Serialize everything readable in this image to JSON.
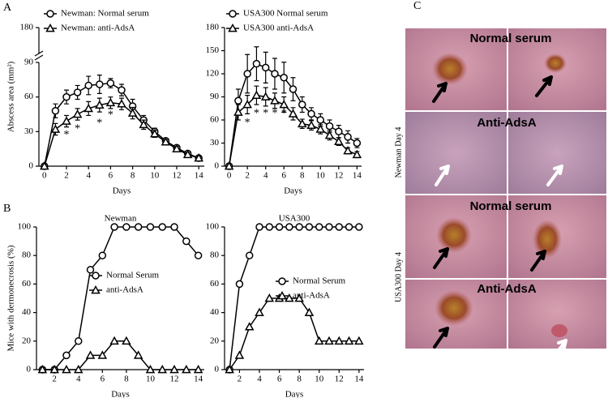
{
  "panel_labels": [
    "A",
    "B",
    "C"
  ],
  "chart_data": [
    {
      "type": "line",
      "x_label": "Days",
      "y_label": "Abscess area (mm²)",
      "x": [
        0,
        1,
        2,
        3,
        4,
        5,
        6,
        7,
        8,
        9,
        10,
        11,
        12,
        13,
        14
      ],
      "xlim": [
        -0.5,
        14.5
      ],
      "xticks": [
        0,
        2,
        4,
        6,
        8,
        10,
        12,
        14
      ],
      "ylim": [
        0,
        180
      ],
      "yticks": [
        0,
        30,
        60,
        90,
        180
      ],
      "y_break": 90,
      "series": [
        {
          "name": "Newman: Normal serum",
          "marker": "circle",
          "color": "#000000",
          "values": [
            0,
            48,
            60,
            64,
            70,
            71,
            72,
            66,
            52,
            40,
            30,
            22,
            16,
            11,
            7
          ],
          "errors": [
            0,
            6,
            6,
            6,
            8,
            8,
            4,
            5,
            6,
            4,
            3,
            2,
            2,
            2,
            2
          ]
        },
        {
          "name": "Newman: anti-AdsA",
          "marker": "triangle",
          "color": "#000000",
          "values": [
            0,
            32,
            39,
            45,
            50,
            53,
            55,
            54,
            46,
            36,
            28,
            21,
            15,
            10,
            7
          ],
          "errors": [
            0,
            5,
            5,
            5,
            6,
            6,
            5,
            5,
            5,
            4,
            3,
            2,
            2,
            2,
            2
          ]
        }
      ],
      "annotations": [
        {
          "text": "*",
          "x": 2,
          "y": 27
        },
        {
          "text": "*",
          "x": 3,
          "y": 32
        },
        {
          "text": "*",
          "x": 5,
          "y": 37
        },
        {
          "text": "*",
          "x": 6,
          "y": 44
        }
      ]
    },
    {
      "type": "line",
      "x_label": "Days",
      "x": [
        0,
        1,
        2,
        3,
        4,
        5,
        6,
        7,
        8,
        9,
        10,
        11,
        12,
        13,
        14
      ],
      "xlim": [
        -0.5,
        14.5
      ],
      "xticks": [
        0,
        2,
        4,
        6,
        8,
        10,
        12,
        14
      ],
      "ylim": [
        0,
        180
      ],
      "yticks": [
        0,
        30,
        60,
        90,
        120,
        150,
        180
      ],
      "series": [
        {
          "name": "USA300 Normal serum",
          "marker": "circle",
          "color": "#000000",
          "values": [
            0,
            85,
            120,
            133,
            128,
            120,
            115,
            100,
            80,
            68,
            60,
            52,
            45,
            38,
            30
          ],
          "errors": [
            0,
            15,
            25,
            22,
            20,
            20,
            20,
            15,
            10,
            8,
            8,
            8,
            8,
            8,
            6
          ]
        },
        {
          "name": "USA300 anti-AdsA",
          "marker": "triangle",
          "color": "#000000",
          "values": [
            0,
            70,
            80,
            92,
            90,
            85,
            80,
            68,
            55,
            53,
            48,
            40,
            32,
            20,
            15
          ],
          "errors": [
            0,
            10,
            12,
            12,
            12,
            10,
            10,
            8,
            6,
            6,
            6,
            6,
            5,
            4,
            4
          ]
        }
      ],
      "annotations": [
        {
          "text": "*",
          "x": 2,
          "y": 56
        },
        {
          "text": "*",
          "x": 3,
          "y": 68
        },
        {
          "text": "*",
          "x": 4,
          "y": 68
        },
        {
          "text": "*",
          "x": 5,
          "y": 68
        },
        {
          "text": "*",
          "x": 6,
          "y": 68
        }
      ]
    },
    {
      "type": "line",
      "title": "Newman",
      "x_label": "Days",
      "y_label": "Mice with dermonecrosis (%)",
      "x": [
        1,
        2,
        3,
        4,
        5,
        6,
        7,
        8,
        9,
        10,
        11,
        12,
        13,
        14
      ],
      "xlim": [
        0.5,
        14.5
      ],
      "xticks": [
        2,
        4,
        6,
        8,
        10,
        12,
        14
      ],
      "ylim": [
        0,
        100
      ],
      "yticks": [
        0,
        20,
        40,
        60,
        80,
        100
      ],
      "series": [
        {
          "name": "Normal Serum",
          "marker": "circle",
          "color": "#000000",
          "values": [
            0,
            0,
            10,
            20,
            70,
            80,
            100,
            100,
            100,
            100,
            100,
            100,
            90,
            80
          ]
        },
        {
          "name": "anti-AdsA",
          "marker": "triangle",
          "color": "#000000",
          "values": [
            0,
            0,
            0,
            0,
            10,
            10,
            20,
            20,
            10,
            0,
            0,
            0,
            0,
            0
          ]
        }
      ]
    },
    {
      "type": "line",
      "title": "USA300",
      "x_label": "Days",
      "x": [
        1,
        2,
        3,
        4,
        5,
        6,
        7,
        8,
        9,
        10,
        11,
        12,
        13,
        14
      ],
      "xlim": [
        0.5,
        14.5
      ],
      "xticks": [
        2,
        4,
        6,
        8,
        10,
        12,
        14
      ],
      "ylim": [
        0,
        100
      ],
      "yticks": [
        0,
        20,
        40,
        60,
        80,
        100
      ],
      "series": [
        {
          "name": "Normal Serum",
          "marker": "circle",
          "color": "#000000",
          "values": [
            0,
            60,
            80,
            100,
            100,
            100,
            100,
            100,
            100,
            100,
            100,
            100,
            100,
            100
          ]
        },
        {
          "name": "anti-AdsA",
          "marker": "triangle",
          "color": "#000000",
          "values": [
            0,
            10,
            30,
            40,
            50,
            50,
            50,
            50,
            40,
            20,
            20,
            20,
            20,
            20
          ]
        }
      ]
    }
  ],
  "photos": {
    "row_labels": [
      "Normal serum",
      "Anti-AdsA",
      "Normal serum",
      "Anti-AdsA"
    ],
    "side_labels": [
      "Newman Day 4",
      "USA300 Day 4"
    ]
  }
}
